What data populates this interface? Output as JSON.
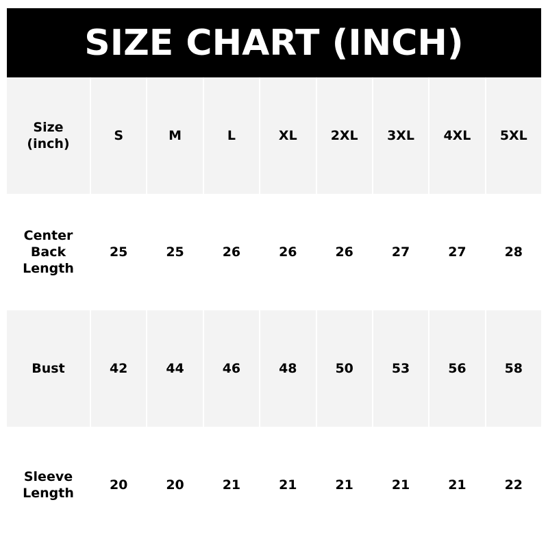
{
  "title": "SIZE CHART (INCH)",
  "colors": {
    "header_bg": "#000000",
    "header_text": "#ffffff",
    "shaded_row": "#f3f3f3"
  },
  "chart_data": {
    "type": "table",
    "title": "SIZE CHART (INCH)",
    "header": [
      "Size\n(inch)",
      "S",
      "M",
      "L",
      "XL",
      "2XL",
      "3XL",
      "4XL",
      "5XL"
    ],
    "rows": [
      {
        "label": "Center\nBack\nLength",
        "values": [
          "25",
          "25",
          "26",
          "26",
          "26",
          "27",
          "27",
          "28"
        ]
      },
      {
        "label": "Bust",
        "values": [
          "42",
          "44",
          "46",
          "48",
          "50",
          "53",
          "56",
          "58"
        ]
      },
      {
        "label": "Sleeve\nLength",
        "values": [
          "20",
          "20",
          "21",
          "21",
          "21",
          "21",
          "21",
          "22"
        ]
      }
    ]
  }
}
